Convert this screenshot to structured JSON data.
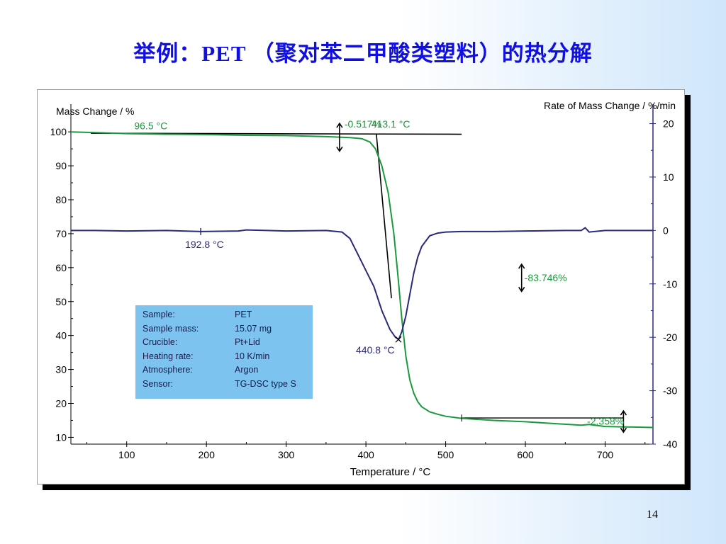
{
  "slide": {
    "title": "举例：PET （聚对苯二甲酸类塑料）的热分解",
    "page_number": "14"
  },
  "colors": {
    "tg": "#1a9a3c",
    "dtg": "#2a2a7a",
    "tangent": "#000000",
    "axis_right": "#2a2a7a",
    "info_bg": "#7cc4ef"
  },
  "info_box": [
    {
      "label": "Sample:",
      "value": "PET"
    },
    {
      "label": "Sample mass:",
      "value": "15.07  mg"
    },
    {
      "label": "Crucible:",
      "value": "Pt+Lid"
    },
    {
      "label": "Heating rate:",
      "value": "10 K/min"
    },
    {
      "label": "Atmosphere:",
      "value": "Argon"
    },
    {
      "label": "Sensor:",
      "value": "TG-DSC type S"
    }
  ],
  "chart_data": {
    "type": "line",
    "xlabel": "Temperature / °C",
    "ylabel": "Mass Change / %",
    "y2label": "Rate of Mass Change / %/min",
    "xlim": [
      30,
      760
    ],
    "ylim": [
      8,
      104
    ],
    "y2lim": [
      -40,
      21
    ],
    "xticks": [
      100,
      200,
      300,
      400,
      500,
      600,
      700
    ],
    "yticks": [
      10,
      20,
      30,
      40,
      50,
      60,
      70,
      80,
      90,
      100
    ],
    "y2ticks": [
      20,
      10,
      0,
      -10,
      -20,
      -30,
      -40
    ],
    "grid": false,
    "series": [
      {
        "key": "tg",
        "axis": "left",
        "x": [
          30,
          60,
          100,
          150,
          200,
          250,
          300,
          350,
          380,
          395,
          405,
          412,
          420,
          428,
          435,
          440,
          445,
          450,
          455,
          460,
          465,
          470,
          480,
          490,
          500,
          520,
          560,
          600,
          640,
          670,
          680,
          700,
          740,
          760
        ],
        "y": [
          100,
          99.8,
          99.5,
          99.3,
          99.2,
          99.0,
          98.9,
          98.6,
          98.3,
          98.0,
          97.0,
          95.0,
          90.0,
          82.0,
          70.0,
          58.0,
          45.0,
          34.0,
          27.0,
          23.0,
          20.5,
          19.0,
          17.5,
          16.8,
          16.2,
          15.6,
          15.0,
          14.6,
          14.0,
          13.6,
          13.8,
          13.2,
          13.0,
          12.9
        ]
      },
      {
        "key": "dtg",
        "axis": "right",
        "x": [
          30,
          60,
          100,
          150,
          193,
          240,
          250,
          300,
          350,
          370,
          380,
          390,
          400,
          410,
          420,
          430,
          437,
          441,
          445,
          450,
          455,
          460,
          465,
          470,
          480,
          490,
          500,
          520,
          560,
          600,
          650,
          670,
          675,
          680,
          700,
          740,
          760
        ],
        "y": [
          0,
          0,
          -0.1,
          0,
          -0.2,
          -0.1,
          0.1,
          -0.1,
          0,
          -0.3,
          -1.5,
          -4.5,
          -7.5,
          -10.5,
          -15,
          -18.5,
          -20,
          -20.4,
          -19,
          -16,
          -12,
          -8,
          -5,
          -3,
          -1,
          -0.5,
          -0.3,
          -0.2,
          -0.2,
          -0.1,
          0,
          0,
          0.5,
          -0.3,
          0,
          0,
          0
        ]
      }
    ],
    "annotations": [
      {
        "key": "onset",
        "text": "96.5 °C",
        "x": 96.5,
        "y": 99.5,
        "series": "tg"
      },
      {
        "key": "step1",
        "text": "-0.517%",
        "x": 318,
        "y": 98.8,
        "series": "tg"
      },
      {
        "key": "extrap_onset",
        "text": "413.1 °C",
        "x": 413.1,
        "y": 98.0,
        "series": "tg"
      },
      {
        "key": "dtg_mark",
        "text": "192.8 °C",
        "x": 192.8,
        "y": -0.2,
        "series": "dtg"
      },
      {
        "key": "dtg_peak",
        "text": "440.8 °C",
        "x": 440.8,
        "y": -20.4,
        "series": "dtg"
      },
      {
        "key": "step_main",
        "text": "-83.746%",
        "x": 525,
        "y": 57,
        "series": "tg"
      },
      {
        "key": "step_last",
        "text": "-2.358%",
        "x": 722,
        "y": 15,
        "series": "tg"
      }
    ]
  }
}
